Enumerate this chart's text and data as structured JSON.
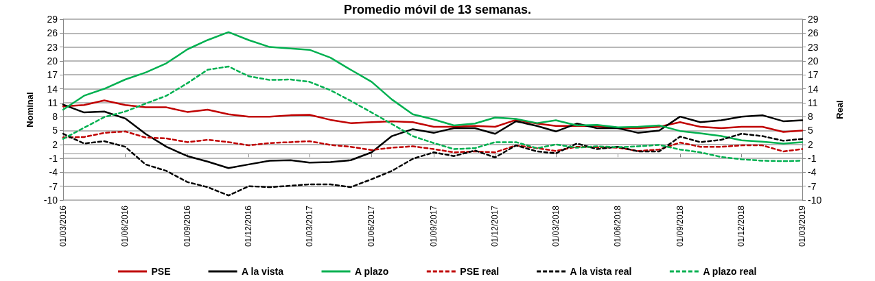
{
  "chart_data": {
    "type": "line",
    "title": "Promedio móvil de 13 semanas.",
    "ylabel": "Nominal",
    "y2label": "Real",
    "x": [
      "2016-03-01",
      "2016-04-01",
      "2016-05-01",
      "2016-06-01",
      "2016-07-01",
      "2016-08-01",
      "2016-09-01",
      "2016-10-01",
      "2016-11-01",
      "2016-12-01",
      "2017-01-01",
      "2017-02-01",
      "2017-03-01",
      "2017-04-01",
      "2017-05-01",
      "2017-06-01",
      "2017-07-01",
      "2017-08-01",
      "2017-09-01",
      "2017-10-01",
      "2017-11-01",
      "2017-12-01",
      "2018-01-01",
      "2018-02-01",
      "2018-03-01",
      "2018-04-01",
      "2018-05-01",
      "2018-06-01",
      "2018-07-01",
      "2018-08-01",
      "2018-09-01",
      "2018-10-01",
      "2018-11-01",
      "2018-12-01",
      "2019-01-01",
      "2019-02-01",
      "2019-03-01"
    ],
    "series": [
      {
        "name": "PSE",
        "color": "#c00000",
        "line_style": "solid",
        "values": [
          10.2,
          10.5,
          11.5,
          10.5,
          10,
          10,
          9,
          9.5,
          8.5,
          8,
          8,
          8.3,
          8.4,
          7.3,
          6.6,
          6.8,
          7,
          6.8,
          5.8,
          5.8,
          6,
          5.8,
          7.3,
          6.5,
          6,
          6,
          6,
          5.5,
          5.5,
          5.8,
          6.8,
          5.8,
          5.5,
          5.8,
          5.8,
          4.7,
          5
        ]
      },
      {
        "name": "A la vista",
        "color": "#000000",
        "line_style": "solid",
        "values": [
          10.6,
          8.9,
          9.1,
          7.6,
          4.3,
          1.5,
          -0.5,
          -1.7,
          -3.1,
          -2.3,
          -1.5,
          -1.4,
          -1.9,
          -1.8,
          -1.4,
          0.3,
          3.8,
          5.3,
          4.5,
          5.5,
          5.5,
          4.3,
          7,
          6,
          4.8,
          6.5,
          5.5,
          5.5,
          4.5,
          5,
          8,
          6.8,
          7.2,
          8,
          8.3,
          7,
          7.2
        ]
      },
      {
        "name": "A plazo",
        "color": "#00b050",
        "line_style": "solid",
        "values": [
          9.5,
          12.5,
          14,
          16,
          17.5,
          19.5,
          22.5,
          24.5,
          26.2,
          24.5,
          23,
          22.7,
          22.4,
          20.7,
          18.1,
          15.5,
          11.7,
          8.5,
          7.4,
          6.1,
          6.5,
          7.8,
          7.5,
          6.6,
          7.2,
          6.1,
          6.2,
          5.7,
          5.8,
          6.1,
          4.9,
          4.4,
          3.8,
          2.9,
          2.6,
          2.2,
          2.5
        ]
      },
      {
        "name": "PSE real",
        "color": "#c00000",
        "line_style": "dashed",
        "values": [
          3.5,
          3.6,
          4.5,
          4.8,
          3.5,
          3.3,
          2.5,
          3,
          2.5,
          1.8,
          2.3,
          2.5,
          2.7,
          1.9,
          1.5,
          0.8,
          1.3,
          1.6,
          1,
          0.3,
          0.5,
          0.3,
          1.8,
          1.2,
          0.6,
          1.5,
          1.4,
          1.3,
          0.6,
          0.9,
          2.4,
          1.5,
          1.5,
          1.8,
          1.8,
          0.5,
          1
        ]
      },
      {
        "name": "A la vista real",
        "color": "#000000",
        "line_style": "dashed",
        "values": [
          4.3,
          2.2,
          2.7,
          1.5,
          -2.3,
          -3.7,
          -6.1,
          -7.2,
          -9,
          -7,
          -7.2,
          -6.9,
          -6.6,
          -6.6,
          -7.2,
          -5.5,
          -3.7,
          -1.1,
          0.3,
          -0.5,
          0.7,
          -0.8,
          1.8,
          0.5,
          0.1,
          2.2,
          1,
          1.5,
          0.5,
          0.5,
          3.7,
          2.5,
          3,
          4.3,
          3.8,
          2.8,
          3.2
        ]
      },
      {
        "name": "A plazo real",
        "color": "#00b050",
        "line_style": "dashed",
        "values": [
          3.2,
          5.6,
          7.9,
          9.1,
          10.8,
          12.5,
          15.2,
          18.1,
          18.8,
          16.7,
          15.9,
          16,
          15.5,
          13.7,
          11.4,
          8.9,
          6.4,
          3.8,
          2.3,
          1,
          1.2,
          2.5,
          2.5,
          1.2,
          2,
          1.3,
          1.6,
          1.4,
          1.6,
          1.9,
          0.9,
          0.3,
          -0.7,
          -1.2,
          -1.5,
          -1.6,
          -1.5
        ]
      }
    ],
    "xlim": [
      "2016-03-01",
      "2019-03-01"
    ],
    "xticks": [
      {
        "value": "2016-03-01",
        "label": "01/03/2016"
      },
      {
        "value": "2016-06-01",
        "label": "01/06/2016"
      },
      {
        "value": "2016-09-01",
        "label": "01/09/2016"
      },
      {
        "value": "2016-12-01",
        "label": "01/12/2016"
      },
      {
        "value": "2017-03-01",
        "label": "01/03/2017"
      },
      {
        "value": "2017-06-01",
        "label": "01/06/2017"
      },
      {
        "value": "2017-09-01",
        "label": "01/09/2017"
      },
      {
        "value": "2017-12-01",
        "label": "01/12/2017"
      },
      {
        "value": "2018-03-01",
        "label": "01/03/2018"
      },
      {
        "value": "2018-06-01",
        "label": "01/06/2018"
      },
      {
        "value": "2018-09-01",
        "label": "01/09/2018"
      },
      {
        "value": "2018-12-01",
        "label": "01/12/2018"
      },
      {
        "value": "2019-03-01",
        "label": "01/03/2019"
      }
    ],
    "ylim": [
      -10,
      29
    ],
    "yticks": [
      -10,
      -7,
      -4,
      -1,
      2,
      5,
      8,
      11,
      14,
      17,
      20,
      23,
      26,
      29
    ],
    "y2lim": [
      -10,
      29
    ],
    "y2ticks": [
      -10,
      -7,
      -4,
      -1,
      2,
      5,
      8,
      11,
      14,
      17,
      20,
      23,
      26,
      29
    ],
    "grid": "y",
    "legend": "bottom",
    "marker": "none"
  }
}
